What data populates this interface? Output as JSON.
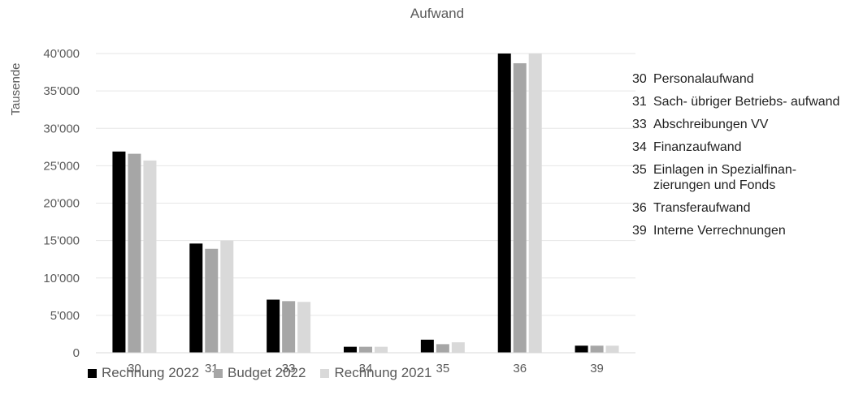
{
  "chart_data": {
    "type": "bar",
    "title": "Aufwand",
    "ylabel": "Tausende",
    "xlabel": "",
    "ylim": [
      0,
      40000
    ],
    "yticks": [
      0,
      5000,
      10000,
      15000,
      20000,
      25000,
      30000,
      35000,
      40000
    ],
    "ytick_labels": [
      "0",
      "5'000",
      "10'000",
      "15'000",
      "20'000",
      "25'000",
      "30'000",
      "35'000",
      "40'000"
    ],
    "categories": [
      "30",
      "31",
      "33",
      "34",
      "35",
      "36",
      "39"
    ],
    "series": [
      {
        "name": "Rechnung 2022",
        "color": "#000000",
        "values": [
          26900,
          14600,
          7100,
          800,
          1750,
          40000,
          950
        ]
      },
      {
        "name": "Budget 2022",
        "color": "#a6a6a6",
        "values": [
          26600,
          13900,
          6900,
          800,
          1150,
          38700,
          950
        ]
      },
      {
        "name": "Rechnung 2021",
        "color": "#d9d9d9",
        "values": [
          25700,
          15000,
          6800,
          800,
          1400,
          40000,
          950
        ]
      }
    ],
    "grid": true,
    "legend_position": "bottom"
  },
  "descriptions": [
    {
      "code": "30",
      "text": "Personalaufwand"
    },
    {
      "code": "31",
      "text": "Sach- übriger Betriebs- aufwand"
    },
    {
      "code": "33",
      "text": "Abschreibungen VV"
    },
    {
      "code": "34",
      "text": "Finanzaufwand"
    },
    {
      "code": "35",
      "text": "Einlagen in Spezialfinan- zierungen und Fonds"
    },
    {
      "code": "36",
      "text": "Transferaufwand"
    },
    {
      "code": "39",
      "text": "Interne Verrechnungen"
    }
  ]
}
